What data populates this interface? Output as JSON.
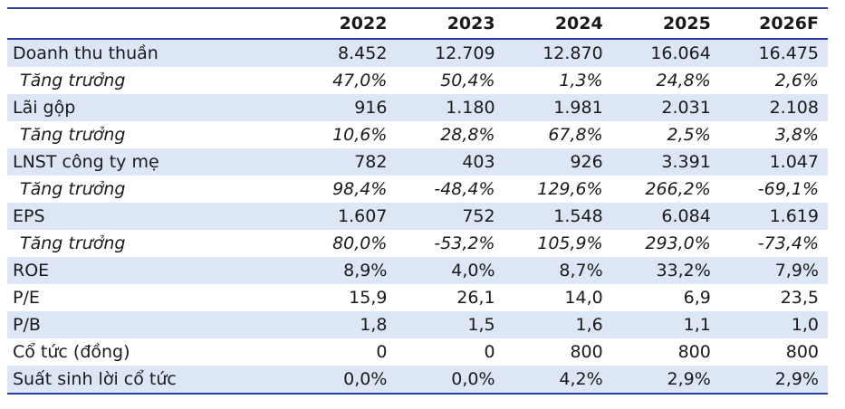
{
  "table": {
    "headers": [
      "",
      "2022",
      "2023",
      "2024",
      "2025",
      "2026F"
    ],
    "rows": [
      {
        "label": "Doanh thu thuần",
        "values": [
          "8.452",
          "12.709",
          "12.870",
          "16.064",
          "16.475"
        ],
        "italic": false
      },
      {
        "label": "Tăng trưởng",
        "values": [
          "47,0%",
          "50,4%",
          "1,3%",
          "24,8%",
          "2,6%"
        ],
        "italic": true
      },
      {
        "label": "Lãi gộp",
        "values": [
          "916",
          "1.180",
          "1.981",
          "2.031",
          "2.108"
        ],
        "italic": false
      },
      {
        "label": "Tăng trưởng",
        "values": [
          "10,6%",
          "28,8%",
          "67,8%",
          "2,5%",
          "3,8%"
        ],
        "italic": true
      },
      {
        "label": "LNST công ty mẹ",
        "values": [
          "782",
          "403",
          "926",
          "3.391",
          "1.047"
        ],
        "italic": false
      },
      {
        "label": "Tăng trưởng",
        "values": [
          "98,4%",
          "-48,4%",
          "129,6%",
          "266,2%",
          "-69,1%"
        ],
        "italic": true
      },
      {
        "label": "EPS",
        "values": [
          "1.607",
          "752",
          "1.548",
          "6.084",
          "1.619"
        ],
        "italic": false
      },
      {
        "label": "Tăng trưởng",
        "values": [
          "80,0%",
          "-53,2%",
          "105,9%",
          "293,0%",
          "-73,4%"
        ],
        "italic": true
      },
      {
        "label": "ROE",
        "values": [
          "8,9%",
          "4,0%",
          "8,7%",
          "33,2%",
          "7,9%"
        ],
        "italic": false
      },
      {
        "label": "P/E",
        "values": [
          "15,9",
          "26,1",
          "14,0",
          "6,9",
          "23,5"
        ],
        "italic": false
      },
      {
        "label": "P/B",
        "values": [
          "1,8",
          "1,5",
          "1,6",
          "1,1",
          "1,0"
        ],
        "italic": false
      },
      {
        "label": "Cổ tức (đồng)",
        "values": [
          "0",
          "0",
          "800",
          "800",
          "800"
        ],
        "italic": false
      },
      {
        "label": "Suất sinh lời cổ tức",
        "values": [
          "0,0%",
          "0,0%",
          "4,2%",
          "2,9%",
          "2,9%"
        ],
        "italic": false
      }
    ]
  },
  "colors": {
    "rule": "#2b3f9e",
    "shade": "#dde6f5"
  }
}
